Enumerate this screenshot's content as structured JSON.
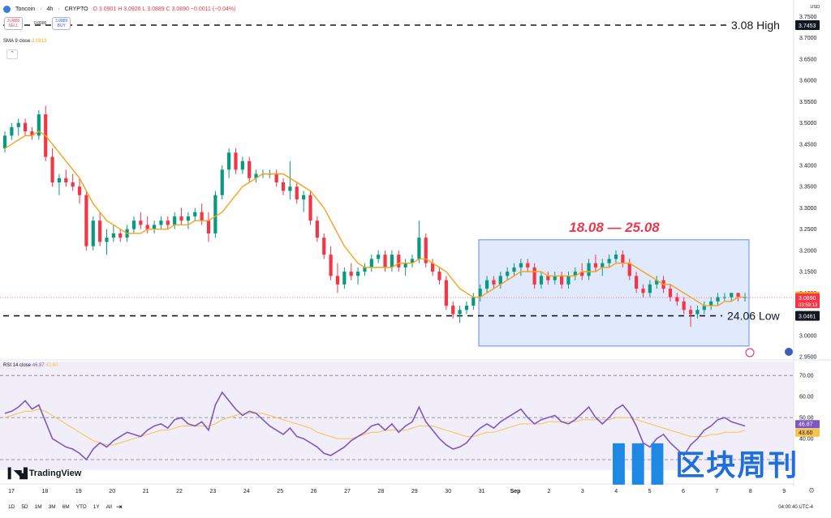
{
  "header": {
    "symbol": "Toncoin",
    "interval": "4h",
    "exchange": "CRYPTO",
    "ohlc": "O 3.0901  H 3.0926  L 3.0889  C 3.0890  −0.0011 (−0.04%)",
    "sell_price": "3.0889",
    "sell_label": "SELL",
    "spread": "0.0000",
    "buy_price": "3.0889",
    "buy_label": "BUY",
    "currency": "USD"
  },
  "sma_label": {
    "name": "SMA 9 close",
    "value": "3.0913"
  },
  "rsi_label": {
    "name": "RSI 14 close",
    "v1": "46.87",
    "v2": "43.60"
  },
  "annotations": {
    "range_text": "18.08 — 25.08",
    "high_text": "3.08 High",
    "low_text": "24.06 Low",
    "high_price": 3.7453,
    "low_price": 3.0461,
    "current_price": 3.089,
    "countdown": "03:59:13",
    "sma_tag": 3.0913
  },
  "timeframes": [
    "1D",
    "5D",
    "1M",
    "3M",
    "6M",
    "YTD",
    "1Y",
    "All"
  ],
  "timezone_text": "04:00:40 UTC-4",
  "tv_logo": "TradingView",
  "watermark": "区块周刊",
  "colors": {
    "up": "#089981",
    "down": "#f23645",
    "sma": "#f7a21b",
    "rsi": "#7e57c2",
    "rsi_ma": "#f7c34a",
    "box": "#5b8def"
  },
  "chart_data": [
    {
      "type": "candlestick",
      "x_labels": [
        "17",
        "18",
        "19",
        "20",
        "21",
        "22",
        "23",
        "24",
        "25",
        "26",
        "27",
        "28",
        "29",
        "30",
        "31",
        "Sep",
        "2",
        "3",
        "4",
        "5",
        "6",
        "7",
        "8",
        "9"
      ],
      "ylim": [
        2.95,
        3.77
      ],
      "y_ticks": [
        2.95,
        3.0,
        3.05,
        3.1,
        3.15,
        3.2,
        3.25,
        3.3,
        3.35,
        3.4,
        3.45,
        3.5,
        3.55,
        3.6,
        3.65,
        3.7,
        3.75
      ],
      "candles": [
        [
          3.44,
          3.48,
          3.43,
          3.47
        ],
        [
          3.47,
          3.5,
          3.46,
          3.49
        ],
        [
          3.49,
          3.51,
          3.47,
          3.5
        ],
        [
          3.5,
          3.51,
          3.47,
          3.48
        ],
        [
          3.48,
          3.49,
          3.46,
          3.47
        ],
        [
          3.47,
          3.53,
          3.46,
          3.52
        ],
        [
          3.52,
          3.54,
          3.41,
          3.42
        ],
        [
          3.42,
          3.44,
          3.35,
          3.36
        ],
        [
          3.36,
          3.38,
          3.33,
          3.37
        ],
        [
          3.37,
          3.39,
          3.35,
          3.36
        ],
        [
          3.36,
          3.38,
          3.34,
          3.35
        ],
        [
          3.35,
          3.37,
          3.31,
          3.33
        ],
        [
          3.33,
          3.34,
          3.2,
          3.21
        ],
        [
          3.21,
          3.28,
          3.2,
          3.27
        ],
        [
          3.27,
          3.29,
          3.21,
          3.22
        ],
        [
          3.22,
          3.25,
          3.19,
          3.23
        ],
        [
          3.23,
          3.26,
          3.22,
          3.24
        ],
        [
          3.24,
          3.25,
          3.22,
          3.23
        ],
        [
          3.23,
          3.26,
          3.22,
          3.25
        ],
        [
          3.25,
          3.28,
          3.24,
          3.27
        ],
        [
          3.27,
          3.29,
          3.25,
          3.26
        ],
        [
          3.26,
          3.28,
          3.24,
          3.25
        ],
        [
          3.25,
          3.27,
          3.24,
          3.26
        ],
        [
          3.26,
          3.28,
          3.25,
          3.27
        ],
        [
          3.27,
          3.28,
          3.25,
          3.26
        ],
        [
          3.26,
          3.29,
          3.25,
          3.28
        ],
        [
          3.28,
          3.3,
          3.26,
          3.27
        ],
        [
          3.27,
          3.29,
          3.25,
          3.28
        ],
        [
          3.28,
          3.3,
          3.27,
          3.29
        ],
        [
          3.29,
          3.31,
          3.26,
          3.27
        ],
        [
          3.27,
          3.29,
          3.22,
          3.24
        ],
        [
          3.24,
          3.34,
          3.23,
          3.33
        ],
        [
          3.33,
          3.4,
          3.32,
          3.39
        ],
        [
          3.39,
          3.44,
          3.37,
          3.43
        ],
        [
          3.43,
          3.44,
          3.38,
          3.39
        ],
        [
          3.39,
          3.42,
          3.38,
          3.41
        ],
        [
          3.41,
          3.42,
          3.36,
          3.37
        ],
        [
          3.37,
          3.39,
          3.36,
          3.38
        ],
        [
          3.38,
          3.39,
          3.37,
          3.38
        ],
        [
          3.38,
          3.39,
          3.37,
          3.38
        ],
        [
          3.38,
          3.39,
          3.35,
          3.36
        ],
        [
          3.36,
          3.37,
          3.33,
          3.34
        ],
        [
          3.34,
          3.41,
          3.32,
          3.35
        ],
        [
          3.35,
          3.36,
          3.31,
          3.32
        ],
        [
          3.32,
          3.34,
          3.29,
          3.33
        ],
        [
          3.33,
          3.34,
          3.26,
          3.27
        ],
        [
          3.27,
          3.28,
          3.22,
          3.23
        ],
        [
          3.23,
          3.24,
          3.18,
          3.19
        ],
        [
          3.19,
          3.21,
          3.13,
          3.14
        ],
        [
          3.14,
          3.17,
          3.1,
          3.12
        ],
        [
          3.12,
          3.16,
          3.11,
          3.15
        ],
        [
          3.15,
          3.17,
          3.13,
          3.14
        ],
        [
          3.14,
          3.16,
          3.12,
          3.15
        ],
        [
          3.15,
          3.17,
          3.14,
          3.16
        ],
        [
          3.16,
          3.19,
          3.15,
          3.18
        ],
        [
          3.18,
          3.2,
          3.17,
          3.19
        ],
        [
          3.19,
          3.2,
          3.15,
          3.16
        ],
        [
          3.16,
          3.2,
          3.15,
          3.19
        ],
        [
          3.19,
          3.2,
          3.15,
          3.16
        ],
        [
          3.16,
          3.18,
          3.14,
          3.17
        ],
        [
          3.17,
          3.19,
          3.16,
          3.18
        ],
        [
          3.18,
          3.27,
          3.17,
          3.23
        ],
        [
          3.23,
          3.24,
          3.16,
          3.17
        ],
        [
          3.17,
          3.18,
          3.14,
          3.15
        ],
        [
          3.15,
          3.16,
          3.12,
          3.13
        ],
        [
          3.13,
          3.14,
          3.06,
          3.07
        ],
        [
          3.07,
          3.08,
          3.04,
          3.05
        ],
        [
          3.05,
          3.07,
          3.03,
          3.06
        ],
        [
          3.06,
          3.08,
          3.05,
          3.07
        ],
        [
          3.07,
          3.1,
          3.06,
          3.09
        ],
        [
          3.09,
          3.12,
          3.08,
          3.11
        ],
        [
          3.11,
          3.14,
          3.1,
          3.13
        ],
        [
          3.13,
          3.14,
          3.11,
          3.12
        ],
        [
          3.12,
          3.15,
          3.11,
          3.14
        ],
        [
          3.14,
          3.16,
          3.13,
          3.15
        ],
        [
          3.15,
          3.17,
          3.14,
          3.16
        ],
        [
          3.16,
          3.18,
          3.14,
          3.17
        ],
        [
          3.17,
          3.18,
          3.15,
          3.16
        ],
        [
          3.16,
          3.17,
          3.11,
          3.12
        ],
        [
          3.12,
          3.15,
          3.11,
          3.14
        ],
        [
          3.14,
          3.15,
          3.12,
          3.13
        ],
        [
          3.13,
          3.15,
          3.12,
          3.14
        ],
        [
          3.14,
          3.15,
          3.11,
          3.12
        ],
        [
          3.12,
          3.15,
          3.11,
          3.14
        ],
        [
          3.14,
          3.16,
          3.13,
          3.15
        ],
        [
          3.15,
          3.17,
          3.13,
          3.14
        ],
        [
          3.14,
          3.18,
          3.13,
          3.17
        ],
        [
          3.17,
          3.19,
          3.15,
          3.16
        ],
        [
          3.16,
          3.18,
          3.14,
          3.17
        ],
        [
          3.17,
          3.19,
          3.16,
          3.18
        ],
        [
          3.18,
          3.2,
          3.17,
          3.19
        ],
        [
          3.19,
          3.2,
          3.16,
          3.17
        ],
        [
          3.17,
          3.18,
          3.13,
          3.14
        ],
        [
          3.14,
          3.15,
          3.1,
          3.11
        ],
        [
          3.11,
          3.12,
          3.09,
          3.1
        ],
        [
          3.1,
          3.13,
          3.09,
          3.12
        ],
        [
          3.12,
          3.14,
          3.11,
          3.13
        ],
        [
          3.13,
          3.14,
          3.1,
          3.11
        ],
        [
          3.11,
          3.12,
          3.08,
          3.09
        ],
        [
          3.09,
          3.1,
          3.07,
          3.08
        ],
        [
          3.08,
          3.09,
          3.05,
          3.06
        ],
        [
          3.06,
          3.07,
          3.02,
          3.05
        ],
        [
          3.05,
          3.07,
          3.04,
          3.06
        ],
        [
          3.06,
          3.08,
          3.05,
          3.07
        ],
        [
          3.07,
          3.09,
          3.06,
          3.08
        ],
        [
          3.08,
          3.1,
          3.07,
          3.09
        ],
        [
          3.09,
          3.1,
          3.08,
          3.09
        ],
        [
          3.09,
          3.1,
          3.08,
          3.1
        ],
        [
          3.1,
          3.1,
          3.08,
          3.09
        ],
        [
          3.09,
          3.1,
          3.08,
          3.09
        ]
      ],
      "sma": [
        3.44,
        3.45,
        3.46,
        3.47,
        3.47,
        3.48,
        3.47,
        3.45,
        3.43,
        3.41,
        3.39,
        3.37,
        3.34,
        3.31,
        3.29,
        3.27,
        3.26,
        3.25,
        3.24,
        3.24,
        3.24,
        3.25,
        3.25,
        3.25,
        3.25,
        3.26,
        3.26,
        3.26,
        3.27,
        3.27,
        3.27,
        3.28,
        3.29,
        3.31,
        3.33,
        3.35,
        3.36,
        3.37,
        3.38,
        3.38,
        3.38,
        3.38,
        3.37,
        3.36,
        3.35,
        3.34,
        3.32,
        3.3,
        3.27,
        3.24,
        3.21,
        3.19,
        3.17,
        3.16,
        3.16,
        3.16,
        3.16,
        3.16,
        3.17,
        3.17,
        3.17,
        3.18,
        3.18,
        3.17,
        3.16,
        3.15,
        3.13,
        3.11,
        3.1,
        3.09,
        3.09,
        3.1,
        3.11,
        3.12,
        3.13,
        3.14,
        3.15,
        3.15,
        3.15,
        3.15,
        3.14,
        3.14,
        3.14,
        3.14,
        3.14,
        3.15,
        3.15,
        3.15,
        3.16,
        3.16,
        3.17,
        3.17,
        3.17,
        3.16,
        3.15,
        3.14,
        3.13,
        3.12,
        3.12,
        3.11,
        3.1,
        3.09,
        3.08,
        3.07,
        3.07,
        3.07,
        3.08,
        3.08,
        3.09,
        3.09
      ]
    },
    {
      "type": "line",
      "title": "RSI 14 close",
      "ylim": [
        25,
        72
      ],
      "y_ticks": [
        40,
        50,
        60,
        70
      ],
      "bands": [
        30,
        50,
        70
      ],
      "series": [
        {
          "values": [
            52,
            53,
            55,
            58,
            54,
            56,
            48,
            40,
            38,
            36,
            35,
            33,
            30,
            35,
            38,
            36,
            39,
            41,
            43,
            42,
            41,
            44,
            46,
            47,
            45,
            49,
            50,
            47,
            46,
            48,
            44,
            56,
            62,
            58,
            54,
            51,
            53,
            52,
            49,
            46,
            44,
            42,
            45,
            41,
            40,
            38,
            36,
            33,
            32,
            34,
            36,
            39,
            41,
            43,
            46,
            47,
            44,
            47,
            43,
            46,
            48,
            55,
            48,
            44,
            40,
            37,
            35,
            36,
            38,
            42,
            45,
            47,
            45,
            48,
            50,
            52,
            54,
            50,
            47,
            49,
            50,
            51,
            48,
            47,
            49,
            52,
            55,
            50,
            47,
            50,
            54,
            56,
            52,
            46,
            38,
            36,
            40,
            42,
            38,
            35,
            32,
            37,
            40,
            44,
            46,
            49,
            50,
            48,
            47,
            46
          ]
        },
        {
          "values": [
            50,
            51,
            52,
            53,
            53,
            54,
            53,
            51,
            49,
            47,
            45,
            43,
            41,
            39,
            38,
            37,
            37,
            38,
            39,
            40,
            41,
            42,
            43,
            44,
            44,
            45,
            46,
            46,
            46,
            46,
            46,
            47,
            49,
            50,
            51,
            52,
            52,
            52,
            52,
            51,
            50,
            49,
            48,
            47,
            46,
            45,
            43,
            42,
            41,
            40,
            40,
            40,
            41,
            42,
            43,
            43,
            44,
            44,
            44,
            44,
            45,
            46,
            46,
            46,
            45,
            44,
            43,
            42,
            41,
            41,
            42,
            43,
            43,
            44,
            45,
            46,
            47,
            47,
            47,
            47,
            48,
            48,
            48,
            48,
            48,
            49,
            49,
            49,
            49,
            49,
            50,
            50,
            50,
            49,
            48,
            47,
            46,
            45,
            44,
            43,
            42,
            41,
            41,
            41,
            42,
            42,
            43,
            43,
            43,
            44
          ]
        }
      ]
    }
  ]
}
